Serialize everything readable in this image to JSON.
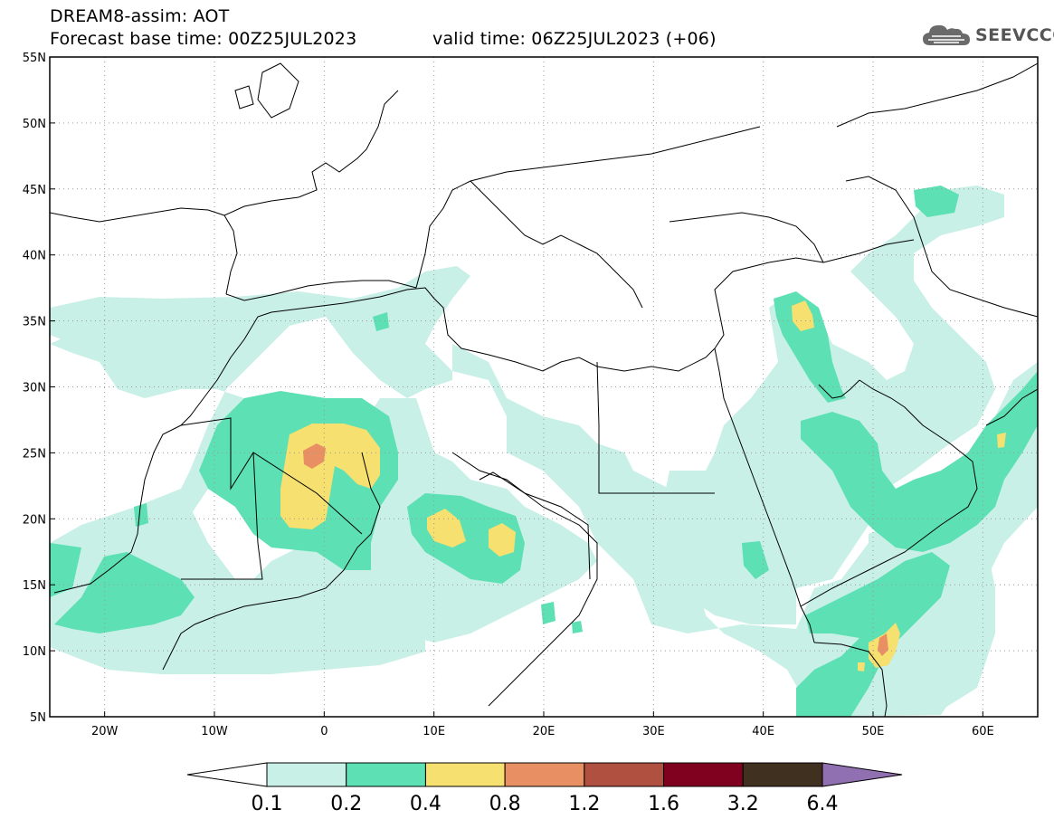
{
  "header": {
    "title": "DREAM8-assim: AOT",
    "base_time": "Forecast base time: 00Z25JUL2023",
    "valid_time": "valid time: 06Z25JUL2023 (+06)"
  },
  "logo": {
    "text": "SEEVCCC",
    "icon": "cloud-icon"
  },
  "map": {
    "lon_range": [
      -25,
      65
    ],
    "lat_range": [
      5,
      55
    ],
    "lat_ticks": [
      {
        "value": 55,
        "label": "55N"
      },
      {
        "value": 50,
        "label": "50N"
      },
      {
        "value": 45,
        "label": "45N"
      },
      {
        "value": 40,
        "label": "40N"
      },
      {
        "value": 35,
        "label": "35N"
      },
      {
        "value": 30,
        "label": "30N"
      },
      {
        "value": 25,
        "label": "25N"
      },
      {
        "value": 20,
        "label": "20N"
      },
      {
        "value": 15,
        "label": "15N"
      },
      {
        "value": 10,
        "label": "10N"
      },
      {
        "value": 5,
        "label": "5N"
      }
    ],
    "lon_ticks": [
      {
        "value": -20,
        "label": "20W"
      },
      {
        "value": -10,
        "label": "10W"
      },
      {
        "value": 0,
        "label": "0"
      },
      {
        "value": 10,
        "label": "10E"
      },
      {
        "value": 20,
        "label": "20E"
      },
      {
        "value": 30,
        "label": "30E"
      },
      {
        "value": 40,
        "label": "40E"
      },
      {
        "value": 50,
        "label": "50E"
      },
      {
        "value": 60,
        "label": "60E"
      }
    ],
    "grid": true
  },
  "colorbar": {
    "levels": [
      "0.1",
      "0.2",
      "0.4",
      "0.8",
      "1.2",
      "1.6",
      "3.2",
      "6.4"
    ],
    "colors": [
      "#ffffff",
      "#c8f0e6",
      "#5ce0b4",
      "#f5e070",
      "#e89064",
      "#b05040",
      "#800020",
      "#403020",
      "#9070b0"
    ]
  }
}
